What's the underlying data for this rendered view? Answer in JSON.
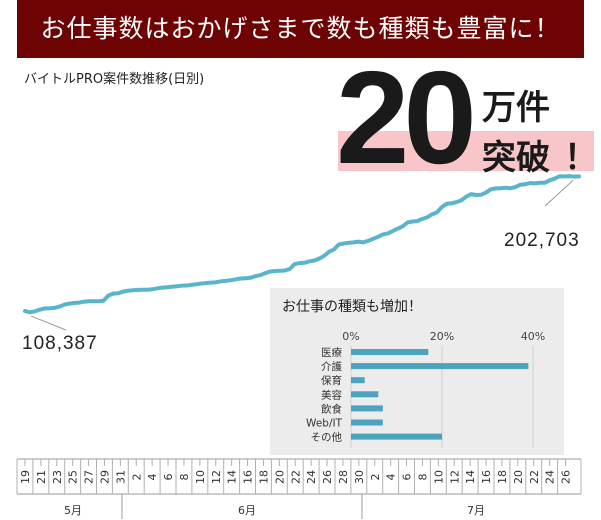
{
  "banner": "お仕事数はおかげさまで数も種類も豊富に！",
  "subtitle": "バイトルPRO案件数推移(日別)",
  "headline": {
    "number": "20",
    "unit": "万件",
    "suffix": "突破",
    "exclaim": "！"
  },
  "chart_data": [
    {
      "type": "line",
      "title": "バイトルPRO案件数推移(日別)",
      "series": [
        {
          "values": [
            108387,
            107500,
            108200,
            109300,
            110200,
            110400,
            110600,
            111500,
            112800,
            113600,
            114000,
            114300,
            114900,
            115200,
            115300,
            115300,
            115600,
            119200,
            120600,
            120800,
            122000,
            122600,
            123000,
            123200,
            123300,
            123300,
            123600,
            124300,
            124800,
            125100,
            125400,
            125700,
            126200,
            126300,
            126700,
            127200,
            127700,
            128000,
            128300,
            128600,
            129200,
            129500,
            130000,
            130600,
            131200,
            131400,
            131700,
            132800,
            133500,
            134900,
            136100,
            136400,
            136600,
            136800,
            137800,
            141200,
            142000,
            142200,
            143200,
            143800,
            145100,
            147000,
            149900,
            151500,
            155000,
            155700,
            156100,
            156500,
            157000,
            156500,
            157600,
            158900,
            160400,
            162100,
            162800,
            164400,
            166100,
            167600,
            170400,
            171100,
            171400,
            172900,
            174000,
            176100,
            177400,
            181100,
            183500,
            183800,
            184700,
            185900,
            188500,
            190300,
            189700,
            189800,
            191300,
            193700,
            194300,
            194400,
            194800,
            194400,
            195200,
            196800,
            197200,
            198100,
            197800,
            198300,
            198200,
            200000,
            201100,
            202800,
            202700,
            202900,
            202600,
            202703
          ]
        }
      ],
      "annotations": [
        {
          "label": "108,387",
          "value": 108387
        },
        {
          "label": "202,703",
          "value": 202703
        }
      ],
      "x_day_labels": [
        "19",
        "21",
        "23",
        "25",
        "27",
        "29",
        "31",
        "2",
        "4",
        "6",
        "8",
        "10",
        "12",
        "14",
        "16",
        "18",
        "20",
        "22",
        "24",
        "26",
        "28",
        "30",
        "2",
        "4",
        "6",
        "8",
        "10",
        "12",
        "14",
        "16",
        "18",
        "20",
        "22",
        "24",
        "26"
      ],
      "months": [
        "5月",
        "6月",
        "7月"
      ]
    },
    {
      "type": "bar",
      "title": "お仕事の種類も増加！",
      "categories": [
        "医療",
        "介護",
        "保育",
        "美容",
        "飲食",
        "Web/IT",
        "その他"
      ],
      "values": [
        17,
        39,
        3,
        6,
        7,
        7,
        20
      ],
      "xticks": [
        "0%",
        "20%",
        "40%"
      ],
      "xlim": [
        0,
        45
      ],
      "color": "#4ba3c0"
    }
  ],
  "colors": {
    "line": "#5ab4cc",
    "banner": "#6e0303",
    "pink": "#f8c6c8"
  }
}
